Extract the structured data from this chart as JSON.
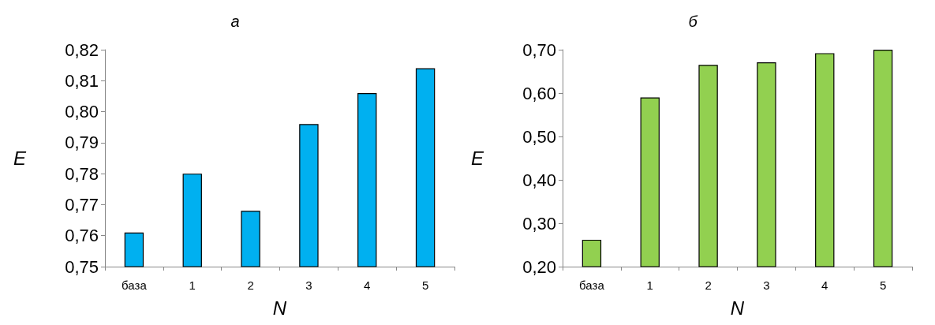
{
  "chart_data": [
    {
      "type": "bar",
      "title": "а",
      "xlabel": "N",
      "ylabel": "E",
      "categories": [
        "база",
        "1",
        "2",
        "3",
        "4",
        "5"
      ],
      "values": [
        0.761,
        0.78,
        0.768,
        0.796,
        0.806,
        0.814
      ],
      "color": "#00b0f0",
      "ylim": [
        0.75,
        0.82
      ],
      "yticks": [
        {
          "value": 0.75,
          "label": "0,75"
        },
        {
          "value": 0.76,
          "label": "0,76"
        },
        {
          "value": 0.77,
          "label": "0,77"
        },
        {
          "value": 0.78,
          "label": "0,78"
        },
        {
          "value": 0.79,
          "label": "0,79"
        },
        {
          "value": 0.8,
          "label": "0,80"
        },
        {
          "value": 0.81,
          "label": "0,81"
        },
        {
          "value": 0.82,
          "label": "0,82"
        }
      ],
      "grid": false
    },
    {
      "type": "bar",
      "title": "б",
      "xlabel": "N",
      "ylabel": "E",
      "categories": [
        "база",
        "1",
        "2",
        "3",
        "4",
        "5"
      ],
      "values": [
        0.262,
        0.59,
        0.665,
        0.671,
        0.692,
        0.7
      ],
      "color": "#92d050",
      "ylim": [
        0.2,
        0.7
      ],
      "yticks": [
        {
          "value": 0.2,
          "label": "0,20"
        },
        {
          "value": 0.3,
          "label": "0,30"
        },
        {
          "value": 0.4,
          "label": "0,40"
        },
        {
          "value": 0.5,
          "label": "0,50"
        },
        {
          "value": 0.6,
          "label": "0,60"
        },
        {
          "value": 0.7,
          "label": "0,70"
        }
      ],
      "grid": false
    }
  ]
}
